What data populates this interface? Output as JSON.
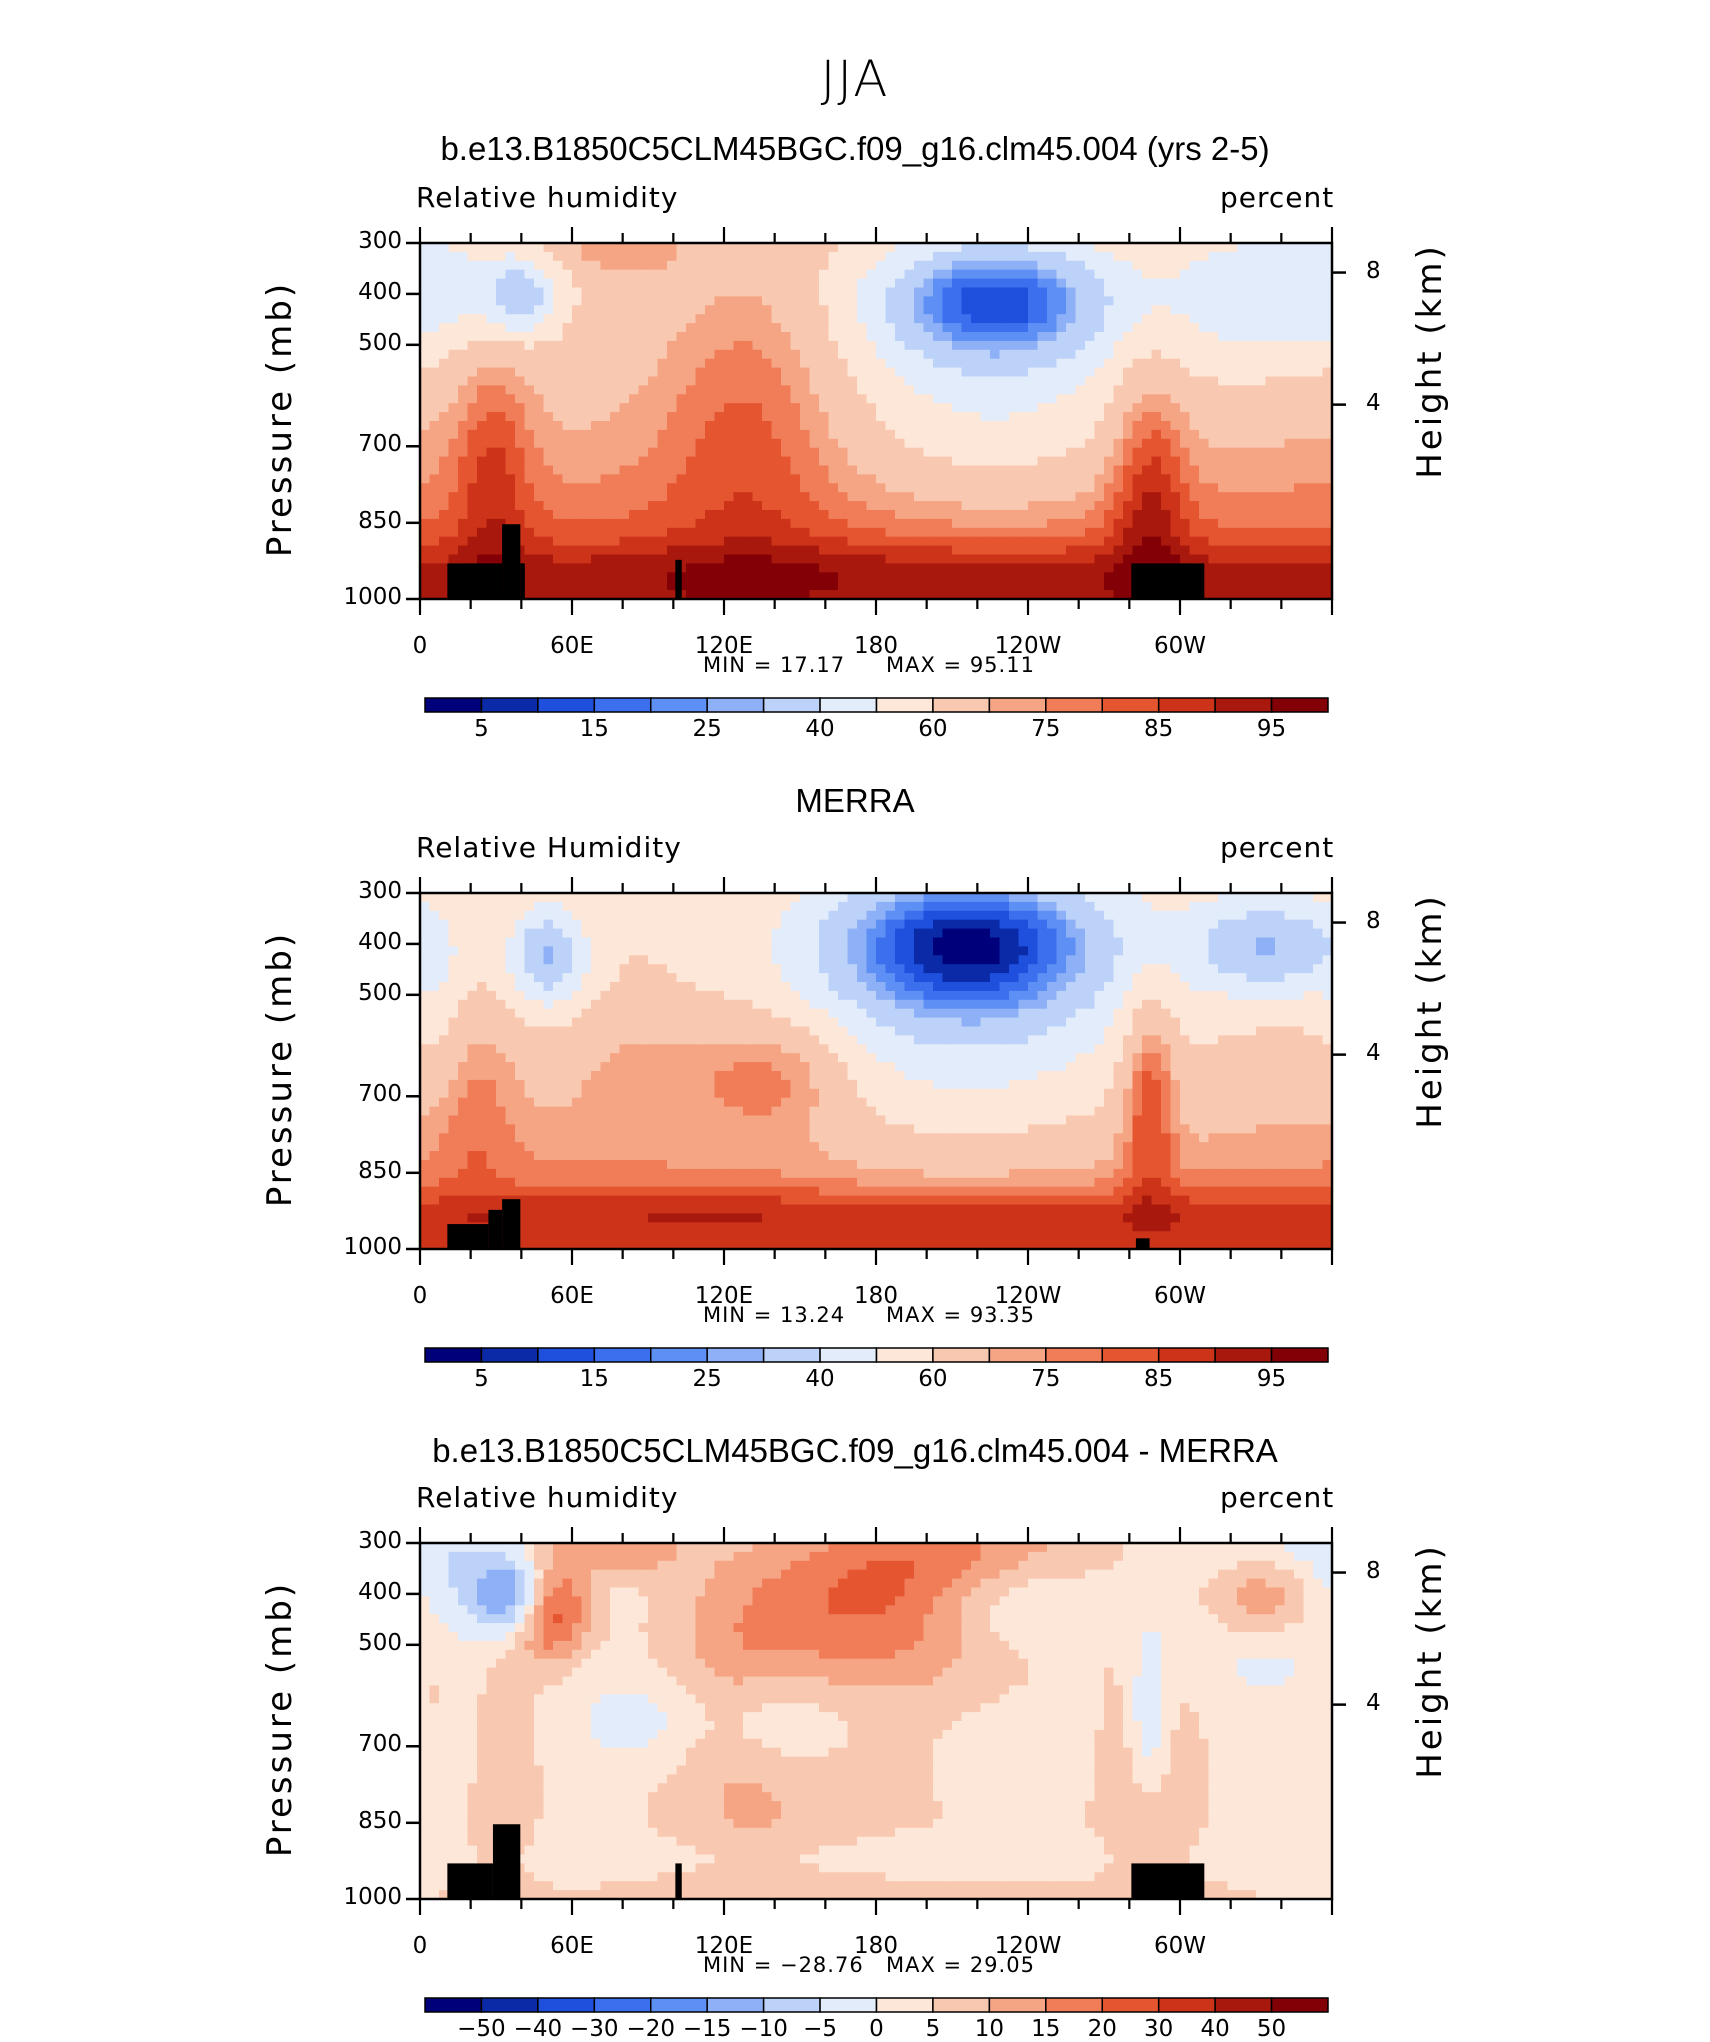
{
  "page_title": "JJA",
  "colors": {
    "rh_scale": [
      "#00007a",
      "#0a2aa8",
      "#1e4fdd",
      "#3c6fee",
      "#5e8ff4",
      "#8eb0f6",
      "#bcd2f8",
      "#e3ecfb",
      "#fde7d8",
      "#f9c8b0",
      "#f5a583",
      "#f07d58",
      "#e45530",
      "#cc3318",
      "#a8180c",
      "#820006"
    ],
    "diff_scale": [
      "#00007a",
      "#0a2aa8",
      "#1e4fdd",
      "#3c6fee",
      "#5e8ff4",
      "#8eb0f6",
      "#bcd2f8",
      "#e3ecfb",
      "#fde7d8",
      "#f9c8b0",
      "#f5a583",
      "#f07d58",
      "#e45530",
      "#cc3318",
      "#a8180c",
      "#820006"
    ],
    "land": "#000000"
  },
  "chart_data": [
    {
      "type": "heatmap",
      "title": "b.e13.B1850C5CLM45BGC.f09_g16.clm45.004 (yrs 2-5)",
      "variable": "Relative humidity",
      "units": "percent",
      "ylabel": "Pressure (mb)",
      "ylabel_right": "Height (km)",
      "y_ticks": [
        "300",
        "400",
        "500",
        "700",
        "850",
        "1000"
      ],
      "y_right_ticks": [
        "8",
        "4"
      ],
      "x_ticks": [
        "0",
        "60E",
        "120E",
        "180",
        "120W",
        "60W"
      ],
      "min_label": "MIN =   17.17",
      "max_label": "MAX =   95.11",
      "min": 17.17,
      "max": 95.11,
      "colorbar_labels": [
        "5",
        "15",
        "25",
        "40",
        "60",
        "75",
        "85",
        "95"
      ]
    },
    {
      "type": "heatmap",
      "title": "MERRA",
      "variable": "Relative Humidity",
      "units": "percent",
      "ylabel": "Pressure (mb)",
      "ylabel_right": "Height (km)",
      "y_ticks": [
        "300",
        "400",
        "500",
        "700",
        "850",
        "1000"
      ],
      "y_right_ticks": [
        "8",
        "4"
      ],
      "x_ticks": [
        "0",
        "60E",
        "120E",
        "180",
        "120W",
        "60W"
      ],
      "min_label": "MIN =   13.24",
      "max_label": "MAX =   93.35",
      "min": 13.24,
      "max": 93.35,
      "colorbar_labels": [
        "5",
        "15",
        "25",
        "40",
        "60",
        "75",
        "85",
        "95"
      ]
    },
    {
      "type": "heatmap",
      "title": "b.e13.B1850C5CLM45BGC.f09_g16.clm45.004 - MERRA",
      "variable": "Relative humidity",
      "units": "percent",
      "ylabel": "Pressure (mb)",
      "ylabel_right": "Height (km)",
      "y_ticks": [
        "300",
        "400",
        "500",
        "700",
        "850",
        "1000"
      ],
      "y_right_ticks": [
        "8",
        "4"
      ],
      "x_ticks": [
        "0",
        "60E",
        "120E",
        "180",
        "120W",
        "60W"
      ],
      "min_label": "MIN = −28.76",
      "max_label": "MAX =   29.05",
      "min": -28.76,
      "max": 29.05,
      "colorbar_labels": [
        "−50",
        "−40",
        "−30",
        "−20",
        "−15",
        "−10",
        "−5",
        "0",
        "5",
        "10",
        "15",
        "20",
        "30",
        "40",
        "50"
      ]
    }
  ]
}
